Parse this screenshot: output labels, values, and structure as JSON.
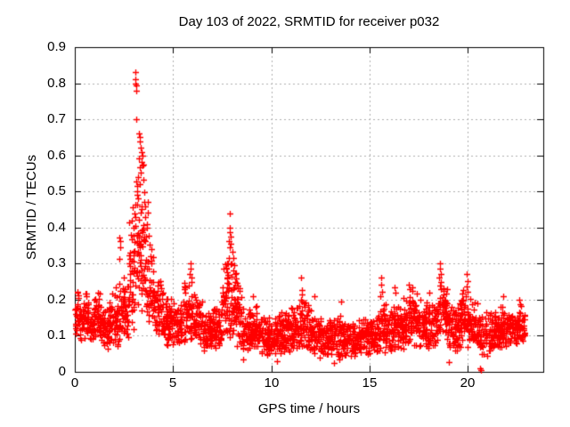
{
  "figure": {
    "title": "Day 103 of 2022, SRMTID for receiver p032",
    "xlabel": "GPS time / hours",
    "ylabel": "SRMTID / TECUs"
  },
  "axes": {
    "x_tick_labels": [
      "0",
      "5",
      "10",
      "15",
      "20"
    ],
    "y_tick_labels": [
      "0.9",
      "0.8",
      "0.7",
      "0.6",
      "0.5",
      "0.4",
      "0.3",
      "0.2",
      "0.1",
      "0"
    ]
  },
  "colors": {
    "marker": "#ff0000",
    "axis": "#000000",
    "grid": "#b0b0b0",
    "background": "#ffffff",
    "text": "#000000"
  },
  "chart_data": {
    "type": "scatter",
    "title": "Day 103 of 2022, SRMTID for receiver p032",
    "xlabel": "GPS time / hours",
    "ylabel": "SRMTID / TECUs",
    "xlim": [
      0,
      23.84
    ],
    "ylim": [
      0,
      0.9
    ],
    "xticks": [
      0,
      5,
      10,
      15,
      20
    ],
    "yticks": [
      0,
      0.1,
      0.2,
      0.3,
      0.4,
      0.5,
      0.6,
      0.7,
      0.8,
      0.9
    ],
    "grid": true,
    "legend": "none",
    "marker": "plus",
    "marker_size_px": 7,
    "marker_color": "#ff0000",
    "series_name": "SRMTID for receiver p032",
    "feature_points": [
      [
        3.08,
        0.832
      ],
      [
        3.1,
        0.812
      ],
      [
        3.1,
        0.8
      ],
      [
        3.11,
        0.793
      ],
      [
        3.12,
        0.78
      ],
      [
        3.13,
        0.7
      ],
      [
        3.28,
        0.66
      ],
      [
        3.33,
        0.65
      ],
      [
        3.3,
        0.638
      ],
      [
        3.36,
        0.622
      ],
      [
        3.4,
        0.61
      ],
      [
        3.45,
        0.6
      ],
      [
        3.25,
        0.592
      ],
      [
        3.38,
        0.582
      ],
      [
        3.43,
        0.572
      ],
      [
        3.5,
        0.575
      ],
      [
        3.35,
        0.553
      ],
      [
        3.2,
        0.54
      ],
      [
        3.47,
        0.532
      ],
      [
        3.31,
        0.52
      ],
      [
        3.15,
        0.5
      ],
      [
        3.55,
        0.498
      ],
      [
        3.22,
        0.48
      ],
      [
        3.52,
        0.47
      ],
      [
        3.6,
        0.458
      ],
      [
        2.95,
        0.455
      ],
      [
        3.05,
        0.44
      ],
      [
        3.58,
        0.43
      ],
      [
        2.9,
        0.42
      ],
      [
        3.65,
        0.41
      ],
      [
        3.0,
        0.4
      ],
      [
        3.7,
        0.47
      ],
      [
        3.72,
        0.442
      ],
      [
        3.68,
        0.4
      ],
      [
        2.85,
        0.38
      ],
      [
        3.75,
        0.378
      ],
      [
        3.8,
        0.352
      ],
      [
        3.85,
        0.32
      ],
      [
        3.9,
        0.3
      ],
      [
        2.28,
        0.372
      ],
      [
        2.3,
        0.362
      ],
      [
        2.33,
        0.345
      ],
      [
        2.25,
        0.312
      ],
      [
        2.8,
        0.33
      ],
      [
        2.75,
        0.3
      ],
      [
        7.9,
        0.44
      ],
      [
        7.88,
        0.4
      ],
      [
        7.87,
        0.386
      ],
      [
        7.92,
        0.375
      ],
      [
        7.85,
        0.362
      ],
      [
        7.95,
        0.355
      ],
      [
        7.89,
        0.345
      ],
      [
        8.0,
        0.332
      ],
      [
        8.05,
        0.316
      ],
      [
        7.97,
        0.302
      ],
      [
        8.1,
        0.295
      ],
      [
        8.08,
        0.282
      ],
      [
        7.82,
        0.315
      ],
      [
        7.8,
        0.3
      ],
      [
        8.15,
        0.272
      ],
      [
        8.2,
        0.26
      ],
      [
        8.18,
        0.25
      ],
      [
        7.78,
        0.27
      ],
      [
        8.25,
        0.246
      ],
      [
        5.88,
        0.3
      ],
      [
        5.9,
        0.286
      ],
      [
        5.85,
        0.272
      ],
      [
        5.92,
        0.262
      ],
      [
        5.95,
        0.25
      ],
      [
        5.82,
        0.24
      ],
      [
        4.33,
        0.252
      ],
      [
        4.36,
        0.242
      ],
      [
        11.52,
        0.262
      ],
      [
        11.55,
        0.226
      ],
      [
        11.55,
        0.215
      ],
      [
        11.5,
        0.2
      ],
      [
        11.58,
        0.195
      ],
      [
        15.58,
        0.262
      ],
      [
        15.6,
        0.242
      ],
      [
        15.62,
        0.222
      ],
      [
        15.55,
        0.21
      ],
      [
        16.28,
        0.235
      ],
      [
        16.31,
        0.22
      ],
      [
        17.0,
        0.242
      ],
      [
        17.05,
        0.23
      ],
      [
        18.6,
        0.3
      ],
      [
        18.58,
        0.286
      ],
      [
        18.62,
        0.272
      ],
      [
        18.55,
        0.262
      ],
      [
        18.65,
        0.25
      ],
      [
        18.57,
        0.24
      ],
      [
        18.63,
        0.23
      ],
      [
        19.95,
        0.272
      ],
      [
        19.97,
        0.252
      ],
      [
        19.93,
        0.236
      ],
      [
        19.98,
        0.222
      ],
      [
        20.63,
        0.01
      ],
      [
        20.66,
        0.006
      ],
      [
        9.05,
        0.21
      ],
      [
        12.2,
        0.21
      ],
      [
        13.55,
        0.195
      ],
      [
        21.8,
        0.21
      ],
      [
        22.6,
        0.2
      ],
      [
        8.55,
        0.035
      ],
      [
        10.3,
        0.03
      ],
      [
        13.2,
        0.025
      ],
      [
        19.05,
        0.028
      ]
    ],
    "envelope_bins": [
      [
        0.0,
        0.25,
        28,
        0.1,
        0.25
      ],
      [
        0.25,
        0.5,
        28,
        0.08,
        0.2
      ],
      [
        0.5,
        0.75,
        28,
        0.09,
        0.24
      ],
      [
        0.75,
        1.0,
        28,
        0.08,
        0.2
      ],
      [
        1.0,
        1.25,
        28,
        0.09,
        0.25
      ],
      [
        1.25,
        1.5,
        28,
        0.07,
        0.2
      ],
      [
        1.5,
        1.75,
        28,
        0.06,
        0.18
      ],
      [
        1.75,
        2.0,
        28,
        0.07,
        0.23
      ],
      [
        2.0,
        2.25,
        28,
        0.06,
        0.25
      ],
      [
        2.25,
        2.5,
        28,
        0.08,
        0.3
      ],
      [
        2.5,
        2.75,
        28,
        0.08,
        0.28
      ],
      [
        2.75,
        3.0,
        28,
        0.1,
        0.42
      ],
      [
        3.0,
        3.25,
        30,
        0.13,
        0.6
      ],
      [
        3.25,
        3.5,
        30,
        0.15,
        0.62
      ],
      [
        3.5,
        3.75,
        28,
        0.13,
        0.45
      ],
      [
        3.75,
        4.0,
        28,
        0.12,
        0.36
      ],
      [
        4.0,
        4.25,
        28,
        0.1,
        0.28
      ],
      [
        4.25,
        4.5,
        28,
        0.09,
        0.26
      ],
      [
        4.5,
        5.0,
        55,
        0.07,
        0.21
      ],
      [
        5.0,
        5.5,
        55,
        0.07,
        0.2
      ],
      [
        5.5,
        6.0,
        55,
        0.08,
        0.26
      ],
      [
        6.0,
        6.5,
        55,
        0.07,
        0.23
      ],
      [
        6.5,
        7.0,
        55,
        0.05,
        0.18
      ],
      [
        7.0,
        7.5,
        55,
        0.06,
        0.2
      ],
      [
        7.5,
        8.0,
        55,
        0.09,
        0.32
      ],
      [
        8.0,
        8.5,
        55,
        0.07,
        0.28
      ],
      [
        8.5,
        9.0,
        55,
        0.04,
        0.19
      ],
      [
        9.0,
        9.5,
        55,
        0.05,
        0.2
      ],
      [
        9.5,
        10.0,
        55,
        0.04,
        0.16
      ],
      [
        10.0,
        10.5,
        55,
        0.04,
        0.17
      ],
      [
        10.5,
        11.0,
        55,
        0.05,
        0.19
      ],
      [
        11.0,
        11.5,
        55,
        0.05,
        0.2
      ],
      [
        11.5,
        12.0,
        55,
        0.05,
        0.21
      ],
      [
        12.0,
        12.5,
        55,
        0.04,
        0.19
      ],
      [
        12.5,
        13.0,
        55,
        0.04,
        0.16
      ],
      [
        13.0,
        13.5,
        55,
        0.03,
        0.17
      ],
      [
        13.5,
        14.0,
        55,
        0.04,
        0.16
      ],
      [
        14.0,
        14.5,
        55,
        0.03,
        0.15
      ],
      [
        14.5,
        15.0,
        55,
        0.04,
        0.16
      ],
      [
        15.0,
        15.5,
        55,
        0.05,
        0.17
      ],
      [
        15.5,
        16.0,
        55,
        0.05,
        0.2
      ],
      [
        16.0,
        16.5,
        55,
        0.05,
        0.2
      ],
      [
        16.5,
        17.0,
        55,
        0.06,
        0.21
      ],
      [
        17.0,
        17.5,
        55,
        0.07,
        0.24
      ],
      [
        17.5,
        18.0,
        55,
        0.06,
        0.22
      ],
      [
        18.0,
        18.5,
        55,
        0.07,
        0.22
      ],
      [
        18.5,
        19.0,
        55,
        0.08,
        0.26
      ],
      [
        19.0,
        19.5,
        55,
        0.05,
        0.2
      ],
      [
        19.5,
        20.0,
        55,
        0.06,
        0.24
      ],
      [
        20.0,
        20.5,
        55,
        0.06,
        0.22
      ],
      [
        20.5,
        21.0,
        50,
        0.04,
        0.17
      ],
      [
        21.0,
        21.5,
        55,
        0.05,
        0.18
      ],
      [
        21.5,
        22.0,
        55,
        0.06,
        0.2
      ],
      [
        22.0,
        22.5,
        55,
        0.07,
        0.19
      ],
      [
        22.5,
        22.9,
        45,
        0.08,
        0.2
      ]
    ]
  }
}
